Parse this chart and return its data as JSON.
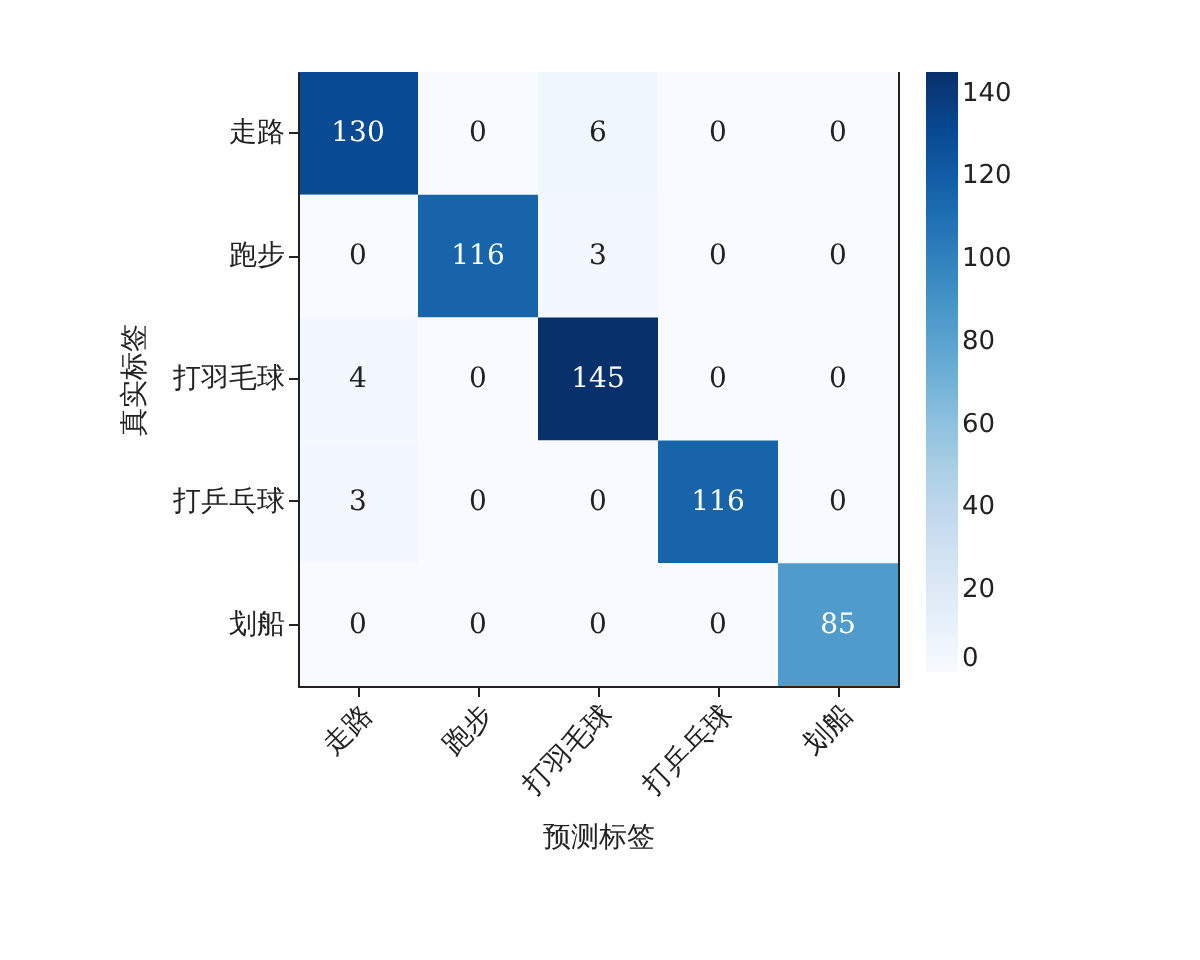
{
  "chart_data": {
    "type": "heatmap",
    "xlabel": "预测标签",
    "ylabel": "真实标签",
    "categories": [
      "走路",
      "跑步",
      "打羽毛球",
      "打乒乓球",
      "划船"
    ],
    "y_categories": [
      "走路",
      "跑步",
      "打羽毛球",
      "打乒乓球",
      "划船"
    ],
    "cells": [
      [
        130,
        0,
        6,
        0,
        0
      ],
      [
        0,
        116,
        3,
        0,
        0
      ],
      [
        4,
        0,
        145,
        0,
        0
      ],
      [
        3,
        0,
        0,
        116,
        0
      ],
      [
        0,
        0,
        0,
        0,
        85
      ]
    ],
    "clim": [
      0,
      145
    ],
    "cticks": [
      0,
      20,
      40,
      60,
      80,
      100,
      120,
      140
    ],
    "data_labels": true,
    "grid": false
  }
}
